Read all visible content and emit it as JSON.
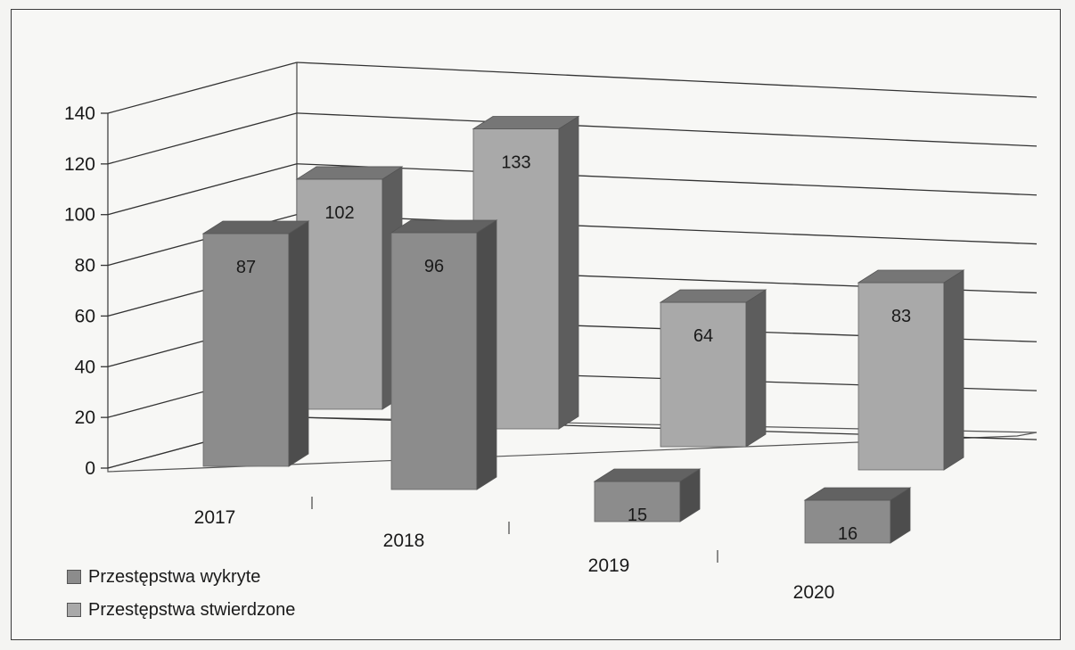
{
  "chart_data": {
    "type": "bar",
    "variant": "3d-column-grouped-depth",
    "categories": [
      "2017",
      "2018",
      "2019",
      "2020"
    ],
    "series": [
      {
        "name": "Przestępstwa wykryte",
        "values": [
          87,
          96,
          15,
          16
        ],
        "color": "#8c8c8c"
      },
      {
        "name": "Przestępstwa stwierdzone",
        "values": [
          102,
          133,
          64,
          83
        ],
        "color": "#a9a9a9"
      }
    ],
    "yticks": [
      "0",
      "20",
      "40",
      "60",
      "80",
      "100",
      "120",
      "140"
    ],
    "ylim": [
      0,
      140
    ],
    "data_labels": true,
    "grid": true,
    "legend_position": "bottom-left"
  }
}
